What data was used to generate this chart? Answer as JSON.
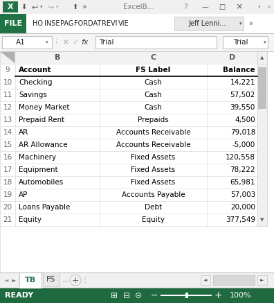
{
  "green": "#217346",
  "white": "#ffffff",
  "light_gray": "#f0f0f0",
  "mid_gray": "#e0e0e0",
  "dark_gray": "#595959",
  "text_gray": "#666666",
  "grid_color": "#d4d4d4",
  "border_color": "#c0c0c0",
  "status_green": "#1e6a3e",
  "ribbon_items": [
    "HO",
    "INSE",
    "PAG",
    "FOR",
    "DAT",
    "REVI",
    "VIE"
  ],
  "table_headers": [
    "Account",
    "FS Label",
    "Balance"
  ],
  "col_letters": [
    "B",
    "C",
    "D"
  ],
  "cell_ref": "A1",
  "formula_text": "Trial",
  "rows": [
    {
      "row": "10",
      "account": "Checking",
      "fs_label": "Cash",
      "balance": "14,221"
    },
    {
      "row": "11",
      "account": "Savings",
      "fs_label": "Cash",
      "balance": "57,502"
    },
    {
      "row": "12",
      "account": "Money Market",
      "fs_label": "Cash",
      "balance": "39,550"
    },
    {
      "row": "13",
      "account": "Prepaid Rent",
      "fs_label": "Prepaids",
      "balance": "4,500"
    },
    {
      "row": "14",
      "account": "AR",
      "fs_label": "Accounts Receivable",
      "balance": "79,018"
    },
    {
      "row": "15",
      "account": "AR Allowance",
      "fs_label": "Accounts Receivable",
      "balance": "-5,000"
    },
    {
      "row": "16",
      "account": "Machinery",
      "fs_label": "Fixed Assets",
      "balance": "120,558"
    },
    {
      "row": "17",
      "account": "Equipment",
      "fs_label": "Fixed Assets",
      "balance": "78,222"
    },
    {
      "row": "18",
      "account": "Automobiles",
      "fs_label": "Fixed Assets",
      "balance": "65,981"
    },
    {
      "row": "19",
      "account": "AP",
      "fs_label": "Accounts Payable",
      "balance": "57,003"
    },
    {
      "row": "20",
      "account": "Loans Payable",
      "fs_label": "Debt",
      "balance": "20,000"
    },
    {
      "row": "21",
      "account": "Equity",
      "fs_label": "Equity",
      "balance": "377,549"
    }
  ],
  "active_tab": "TB",
  "sheet_tabs": [
    "TB",
    "FS",
    "..."
  ]
}
